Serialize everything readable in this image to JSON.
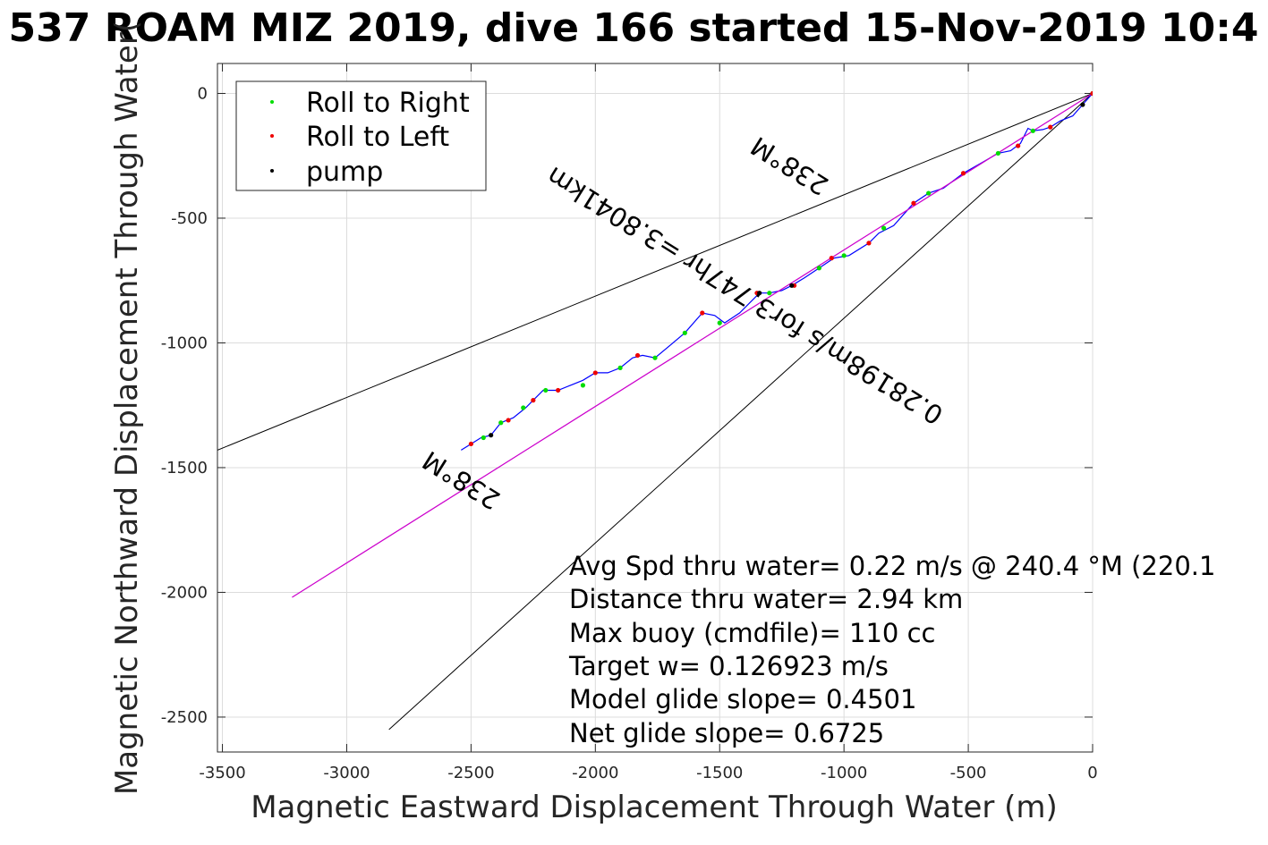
{
  "figure": {
    "title": "537 ROAM MIZ 2019, dive 166 started 15-Nov-2019 10:4"
  },
  "chart_data": {
    "type": "line",
    "title": "537 ROAM MIZ 2019, dive 166 started 15-Nov-2019 10:4",
    "xlabel": "Magnetic Eastward Displacement Through Water (m)",
    "ylabel": "Magnetic Northward Displacement Through Water(",
    "xlim": [
      -3520,
      0
    ],
    "ylim": [
      -2640,
      120
    ],
    "grid": true,
    "x_ticks": [
      -3500,
      -3000,
      -2500,
      -2000,
      -1500,
      -1000,
      -500,
      0
    ],
    "x_tick_labels": [
      "-3500",
      "-3000",
      "-2500",
      "-2000",
      "-1500",
      "-1000",
      "-500",
      "0"
    ],
    "y_ticks": [
      0,
      -500,
      -1000,
      -1500,
      -2000,
      -2500
    ],
    "y_tick_labels": [
      "0",
      "-500",
      "-1000",
      "-1500",
      "-2000",
      "-2500"
    ],
    "legend": {
      "placement": "top-left",
      "entries": [
        {
          "label": "Roll to Right",
          "color": "#00dd00"
        },
        {
          "label": "Roll to Left",
          "color": "#ee0000"
        },
        {
          "label": "pump",
          "color": "#000000"
        }
      ]
    },
    "series": [
      {
        "color": "#0000ff",
        "style": "line",
        "points": [
          [
            0,
            0
          ],
          [
            -40,
            -45
          ],
          [
            -80,
            -90
          ],
          [
            -130,
            -110
          ],
          [
            -170,
            -135
          ],
          [
            -200,
            -145
          ],
          [
            -240,
            -150
          ],
          [
            -260,
            -140
          ],
          [
            -290,
            -200
          ],
          [
            -330,
            -230
          ],
          [
            -380,
            -240
          ],
          [
            -450,
            -280
          ],
          [
            -520,
            -320
          ],
          [
            -600,
            -380
          ],
          [
            -660,
            -400
          ],
          [
            -720,
            -440
          ],
          [
            -800,
            -530
          ],
          [
            -860,
            -560
          ],
          [
            -900,
            -600
          ],
          [
            -980,
            -650
          ],
          [
            -1040,
            -660
          ],
          [
            -1100,
            -700
          ],
          [
            -1160,
            -740
          ],
          [
            -1210,
            -770
          ],
          [
            -1250,
            -790
          ],
          [
            -1300,
            -800
          ],
          [
            -1340,
            -800
          ],
          [
            -1420,
            -880
          ],
          [
            -1480,
            -920
          ],
          [
            -1520,
            -890
          ],
          [
            -1570,
            -880
          ],
          [
            -1640,
            -960
          ],
          [
            -1700,
            -1010
          ],
          [
            -1760,
            -1060
          ],
          [
            -1810,
            -1050
          ],
          [
            -1850,
            -1060
          ],
          [
            -1900,
            -1100
          ],
          [
            -1950,
            -1120
          ],
          [
            -2000,
            -1120
          ],
          [
            -2050,
            -1150
          ],
          [
            -2100,
            -1170
          ],
          [
            -2150,
            -1190
          ],
          [
            -2210,
            -1190
          ],
          [
            -2250,
            -1230
          ],
          [
            -2280,
            -1260
          ],
          [
            -2330,
            -1300
          ],
          [
            -2380,
            -1320
          ],
          [
            -2420,
            -1370
          ],
          [
            -2460,
            -1380
          ],
          [
            -2500,
            -1405
          ],
          [
            -2540,
            -1430
          ]
        ]
      },
      {
        "color": "#cc00cc",
        "style": "line",
        "points": [
          [
            0,
            0
          ],
          [
            -3220,
            -2020
          ]
        ]
      }
    ],
    "roll_right_points": [
      [
        0,
        0
      ],
      [
        -240,
        -150
      ],
      [
        -380,
        -240
      ],
      [
        -660,
        -400
      ],
      [
        -840,
        -540
      ],
      [
        -1000,
        -650
      ],
      [
        -1100,
        -700
      ],
      [
        -1300,
        -800
      ],
      [
        -1500,
        -920
      ],
      [
        -1640,
        -960
      ],
      [
        -1760,
        -1060
      ],
      [
        -1900,
        -1100
      ],
      [
        -2050,
        -1170
      ],
      [
        -2200,
        -1190
      ],
      [
        -2290,
        -1260
      ],
      [
        -2380,
        -1320
      ],
      [
        -2450,
        -1380
      ]
    ],
    "roll_left_points": [
      [
        0,
        0
      ],
      [
        -170,
        -135
      ],
      [
        -300,
        -210
      ],
      [
        -520,
        -320
      ],
      [
        -720,
        -440
      ],
      [
        -900,
        -600
      ],
      [
        -1050,
        -660
      ],
      [
        -1200,
        -770
      ],
      [
        -1350,
        -800
      ],
      [
        -1570,
        -880
      ],
      [
        -1830,
        -1050
      ],
      [
        -2000,
        -1120
      ],
      [
        -2150,
        -1190
      ],
      [
        -2250,
        -1230
      ],
      [
        -2350,
        -1310
      ],
      [
        -2500,
        -1405
      ]
    ],
    "pump_points": [
      [
        -40,
        -45
      ],
      [
        -1340,
        -800
      ],
      [
        -1210,
        -770
      ],
      [
        -2420,
        -1370
      ]
    ],
    "reference_lines": [
      {
        "name": "upper",
        "color": "#000000",
        "points": [
          [
            0,
            0
          ],
          [
            -3520,
            -1430
          ]
        ]
      },
      {
        "name": "lower",
        "color": "#000000",
        "points": [
          [
            0,
            0
          ],
          [
            -2830,
            -2550
          ]
        ]
      }
    ],
    "annotations": [
      {
        "text": "238°M",
        "at": [
          -2520,
          -1520
        ],
        "rotation_deg": 212
      },
      {
        "text": "238°M",
        "at": [
          -1200,
          -260
        ],
        "rotation_deg": 212
      },
      {
        "text": "0.28198m/s for3.747hr =3.8041km",
        "at": [
          -1380,
          -780
        ],
        "rotation_deg": 212
      }
    ],
    "summary_lines": [
      "Avg Spd thru water=  0.22 m/s @ 240.4 °M (220.1",
      "Distance thru water=  2.94 km",
      "Max buoy (cmdfile)= 110 cc",
      "Target w= 0.126923 m/s",
      "Model glide slope= 0.4501",
      "Net glide slope= 0.6725"
    ]
  }
}
